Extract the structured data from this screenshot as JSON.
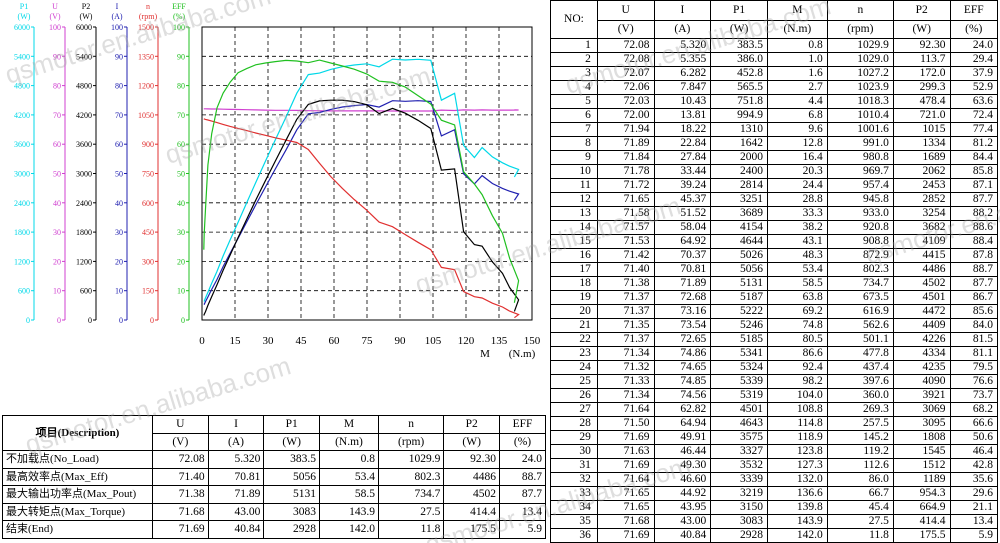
{
  "chart_data": {
    "type": "line",
    "xlabel": "M",
    "xunit": "(N.m)",
    "xlim": [
      0,
      150
    ],
    "xticks": [
      "0",
      "15",
      "30",
      "45",
      "60",
      "75",
      "90",
      "105",
      "120",
      "135",
      "150"
    ],
    "grid": true,
    "axes": [
      {
        "id": "p1",
        "name": "P1",
        "unit": "(W)",
        "color": "#00d8e8",
        "min": 0,
        "max": 6000,
        "ticks": [
          "0",
          "600",
          "1200",
          "1800",
          "2400",
          "3000",
          "3600",
          "4200",
          "4800",
          "5400",
          "6000"
        ]
      },
      {
        "id": "u",
        "name": "U",
        "unit": "(V)",
        "color": "#d040d0",
        "min": 0,
        "max": 100,
        "ticks": [
          "0",
          "10",
          "20",
          "30",
          "40",
          "50",
          "60",
          "70",
          "80",
          "90",
          "100"
        ]
      },
      {
        "id": "p2",
        "name": "P2",
        "unit": "(W)",
        "color": "#000000",
        "min": 0,
        "max": 6000,
        "ticks": [
          "0",
          "600",
          "1200",
          "1800",
          "2400",
          "3000",
          "3600",
          "4200",
          "4800",
          "5400",
          "6000"
        ]
      },
      {
        "id": "i",
        "name": "I",
        "unit": "(A)",
        "color": "#2020b0",
        "min": 0,
        "max": 100,
        "ticks": [
          "0",
          "10",
          "20",
          "30",
          "40",
          "50",
          "60",
          "70",
          "80",
          "90",
          "100"
        ]
      },
      {
        "id": "n",
        "name": "n",
        "unit": "(rpm)",
        "color": "#e03030",
        "min": 0,
        "max": 1500,
        "ticks": [
          "0",
          "150",
          "300",
          "450",
          "600",
          "750",
          "900",
          "1050",
          "1200",
          "1350",
          "1500"
        ]
      },
      {
        "id": "eff",
        "name": "EFF",
        "unit": "(%)",
        "color": "#20c020",
        "min": 0,
        "max": 100,
        "ticks": [
          "0",
          "10",
          "20",
          "30",
          "40",
          "50",
          "60",
          "70",
          "80",
          "90",
          "100"
        ]
      }
    ],
    "series": [
      {
        "axis": "u",
        "color": "#d040d0",
        "x": [
          0.8,
          1.0,
          1.6,
          2.7,
          4.4,
          6.8,
          9.6,
          12.8,
          16.4,
          20.3,
          24.4,
          28.8,
          33.3,
          38.2,
          43.1,
          48.3,
          53.4,
          58.5,
          63.8,
          69.2,
          74.8,
          80.5,
          86.6,
          92.4,
          98.2,
          104.0,
          108.8,
          114.8,
          118.9,
          123.8,
          127.3,
          132.0,
          136.6,
          139.8,
          143.9,
          142.0
        ],
        "values": [
          72.08,
          72.08,
          72.07,
          72.06,
          72.03,
          72.0,
          71.94,
          71.89,
          71.84,
          71.78,
          71.72,
          71.65,
          71.58,
          71.57,
          71.53,
          71.42,
          71.4,
          71.38,
          71.37,
          71.37,
          71.35,
          71.37,
          71.34,
          71.32,
          71.33,
          71.34,
          71.64,
          71.5,
          71.69,
          71.63,
          71.69,
          71.64,
          71.65,
          71.65,
          71.68,
          71.69
        ]
      },
      {
        "axis": "i",
        "color": "#2020b0",
        "x": [
          0.8,
          1.0,
          1.6,
          2.7,
          4.4,
          6.8,
          9.6,
          12.8,
          16.4,
          20.3,
          24.4,
          28.8,
          33.3,
          38.2,
          43.1,
          48.3,
          53.4,
          58.5,
          63.8,
          69.2,
          74.8,
          80.5,
          86.6,
          92.4,
          98.2,
          104.0,
          108.8,
          114.8,
          118.9,
          123.8,
          127.3,
          132.0,
          136.6,
          139.8,
          143.9,
          142.0
        ],
        "values": [
          5.32,
          5.355,
          6.282,
          7.847,
          10.43,
          13.81,
          18.22,
          22.84,
          27.84,
          33.44,
          39.24,
          45.37,
          51.52,
          58.04,
          64.92,
          70.37,
          70.81,
          71.89,
          72.68,
          73.16,
          73.54,
          72.65,
          74.86,
          74.65,
          74.85,
          74.56,
          62.82,
          64.94,
          49.91,
          46.44,
          49.3,
          46.6,
          44.92,
          43.95,
          43.0,
          40.84
        ]
      },
      {
        "axis": "p1",
        "color": "#00d8e8",
        "x": [
          0.8,
          1.0,
          1.6,
          2.7,
          4.4,
          6.8,
          9.6,
          12.8,
          16.4,
          20.3,
          24.4,
          28.8,
          33.3,
          38.2,
          43.1,
          48.3,
          53.4,
          58.5,
          63.8,
          69.2,
          74.8,
          80.5,
          86.6,
          92.4,
          98.2,
          104.0,
          108.8,
          114.8,
          118.9,
          123.8,
          127.3,
          132.0,
          136.6,
          139.8,
          143.9,
          142.0
        ],
        "values": [
          383.5,
          386.0,
          452.8,
          565.5,
          751.8,
          994.9,
          1310,
          1642,
          2000,
          2400,
          2814,
          3251,
          3689,
          4154,
          4644,
          5026,
          5056,
          5131,
          5187,
          5222,
          5246,
          5185,
          5341,
          5324,
          5339,
          5319,
          4501,
          4643,
          3575,
          3327,
          3532,
          3339,
          3219,
          3150,
          3083,
          2928
        ]
      },
      {
        "axis": "n",
        "color": "#e03030",
        "x": [
          0.8,
          1.0,
          1.6,
          2.7,
          4.4,
          6.8,
          9.6,
          12.8,
          16.4,
          20.3,
          24.4,
          28.8,
          33.3,
          38.2,
          43.1,
          48.3,
          53.4,
          58.5,
          63.8,
          69.2,
          74.8,
          80.5,
          86.6,
          92.4,
          98.2,
          104.0,
          108.8,
          114.8,
          118.9,
          123.8,
          127.3,
          132.0,
          136.6,
          139.8,
          143.9,
          142.0
        ],
        "values": [
          1029.9,
          1029.0,
          1027.2,
          1023.9,
          1018.3,
          1010.4,
          1001.6,
          991.0,
          980.8,
          969.7,
          957.4,
          945.8,
          933.0,
          920.8,
          908.8,
          872.9,
          802.3,
          734.7,
          673.5,
          616.9,
          562.6,
          501.1,
          477.8,
          437.4,
          397.6,
          360.0,
          269.3,
          257.5,
          145.2,
          119.2,
          112.6,
          86.0,
          66.7,
          45.4,
          27.5,
          11.8
        ]
      },
      {
        "axis": "p2",
        "color": "#000000",
        "x": [
          0.8,
          1.0,
          1.6,
          2.7,
          4.4,
          6.8,
          9.6,
          12.8,
          16.4,
          20.3,
          24.4,
          28.8,
          33.3,
          38.2,
          43.1,
          48.3,
          53.4,
          58.5,
          63.8,
          69.2,
          74.8,
          80.5,
          86.6,
          92.4,
          98.2,
          104.0,
          108.8,
          114.8,
          118.9,
          123.8,
          127.3,
          132.0,
          136.6,
          139.8,
          143.9,
          142.0
        ],
        "values": [
          92.3,
          113.7,
          172.0,
          299.3,
          478.4,
          721.0,
          1015,
          1334,
          1689,
          2062,
          2453,
          2852,
          3254,
          3682,
          4109,
          4415,
          4486,
          4502,
          4501,
          4472,
          4409,
          4226,
          4334,
          4235,
          4090,
          3921,
          3069,
          3095,
          1808,
          1545,
          1512,
          1189,
          954.3,
          664.9,
          414.4,
          175.5
        ]
      },
      {
        "axis": "eff",
        "color": "#20c020",
        "x": [
          0.8,
          1.0,
          1.6,
          2.7,
          4.4,
          6.8,
          9.6,
          12.8,
          16.4,
          20.3,
          24.4,
          28.8,
          33.3,
          38.2,
          43.1,
          48.3,
          53.4,
          58.5,
          63.8,
          69.2,
          74.8,
          80.5,
          86.6,
          92.4,
          98.2,
          104.0,
          108.8,
          114.8,
          118.9,
          123.8,
          127.3,
          132.0,
          136.6,
          139.8,
          143.9,
          142.0
        ],
        "values": [
          24.0,
          29.4,
          37.9,
          52.9,
          63.6,
          72.4,
          77.4,
          81.2,
          84.4,
          85.8,
          87.1,
          87.7,
          88.2,
          88.6,
          88.4,
          87.8,
          88.7,
          87.7,
          86.7,
          85.6,
          84.0,
          81.5,
          81.1,
          79.5,
          76.6,
          73.7,
          68.2,
          66.6,
          50.6,
          46.4,
          42.8,
          35.6,
          29.6,
          21.1,
          13.4,
          5.9
        ]
      }
    ]
  },
  "watermarks": [
    "qsmotor.en.alibaba.com",
    "qsmotor.en.alibaba.com",
    "qsmotor.en.alibaba.com",
    "qsmotor.en.alibaba.com",
    "qsmotor.en.alibaba.com",
    "qsmotor.en.alibaba.com",
    "qsmotor.en.alibaba.com"
  ],
  "data_table": {
    "headers": [
      "NO:",
      "U",
      "I",
      "P1",
      "M",
      "n",
      "P2",
      "EFF"
    ],
    "units": [
      "(V)",
      "(A)",
      "(W)",
      "(N.m)",
      "(rpm)",
      "(W)",
      "(%)"
    ],
    "rows": [
      [
        "1",
        "72.08",
        "5.320",
        "383.5",
        "0.8",
        "1029.9",
        "92.30",
        "24.0"
      ],
      [
        "2",
        "72.08",
        "5.355",
        "386.0",
        "1.0",
        "1029.0",
        "113.7",
        "29.4"
      ],
      [
        "3",
        "72.07",
        "6.282",
        "452.8",
        "1.6",
        "1027.2",
        "172.0",
        "37.9"
      ],
      [
        "4",
        "72.06",
        "7.847",
        "565.5",
        "2.7",
        "1023.9",
        "299.3",
        "52.9"
      ],
      [
        "5",
        "72.03",
        "10.43",
        "751.8",
        "4.4",
        "1018.3",
        "478.4",
        "63.6"
      ],
      [
        "6",
        "72.00",
        "13.81",
        "994.9",
        "6.8",
        "1010.4",
        "721.0",
        "72.4"
      ],
      [
        "7",
        "71.94",
        "18.22",
        "1310",
        "9.6",
        "1001.6",
        "1015",
        "77.4"
      ],
      [
        "8",
        "71.89",
        "22.84",
        "1642",
        "12.8",
        "991.0",
        "1334",
        "81.2"
      ],
      [
        "9",
        "71.84",
        "27.84",
        "2000",
        "16.4",
        "980.8",
        "1689",
        "84.4"
      ],
      [
        "10",
        "71.78",
        "33.44",
        "2400",
        "20.3",
        "969.7",
        "2062",
        "85.8"
      ],
      [
        "11",
        "71.72",
        "39.24",
        "2814",
        "24.4",
        "957.4",
        "2453",
        "87.1"
      ],
      [
        "12",
        "71.65",
        "45.37",
        "3251",
        "28.8",
        "945.8",
        "2852",
        "87.7"
      ],
      [
        "13",
        "71.58",
        "51.52",
        "3689",
        "33.3",
        "933.0",
        "3254",
        "88.2"
      ],
      [
        "14",
        "71.57",
        "58.04",
        "4154",
        "38.2",
        "920.8",
        "3682",
        "88.6"
      ],
      [
        "15",
        "71.53",
        "64.92",
        "4644",
        "43.1",
        "908.8",
        "4109",
        "88.4"
      ],
      [
        "16",
        "71.42",
        "70.37",
        "5026",
        "48.3",
        "872.9",
        "4415",
        "87.8"
      ],
      [
        "17",
        "71.40",
        "70.81",
        "5056",
        "53.4",
        "802.3",
        "4486",
        "88.7"
      ],
      [
        "18",
        "71.38",
        "71.89",
        "5131",
        "58.5",
        "734.7",
        "4502",
        "87.7"
      ],
      [
        "19",
        "71.37",
        "72.68",
        "5187",
        "63.8",
        "673.5",
        "4501",
        "86.7"
      ],
      [
        "20",
        "71.37",
        "73.16",
        "5222",
        "69.2",
        "616.9",
        "4472",
        "85.6"
      ],
      [
        "21",
        "71.35",
        "73.54",
        "5246",
        "74.8",
        "562.6",
        "4409",
        "84.0"
      ],
      [
        "22",
        "71.37",
        "72.65",
        "5185",
        "80.5",
        "501.1",
        "4226",
        "81.5"
      ],
      [
        "23",
        "71.34",
        "74.86",
        "5341",
        "86.6",
        "477.8",
        "4334",
        "81.1"
      ],
      [
        "24",
        "71.32",
        "74.65",
        "5324",
        "92.4",
        "437.4",
        "4235",
        "79.5"
      ],
      [
        "25",
        "71.33",
        "74.85",
        "5339",
        "98.2",
        "397.6",
        "4090",
        "76.6"
      ],
      [
        "26",
        "71.34",
        "74.56",
        "5319",
        "104.0",
        "360.0",
        "3921",
        "73.7"
      ],
      [
        "27",
        "71.64",
        "62.82",
        "4501",
        "108.8",
        "269.3",
        "3069",
        "68.2"
      ],
      [
        "28",
        "71.50",
        "64.94",
        "4643",
        "114.8",
        "257.5",
        "3095",
        "66.6"
      ],
      [
        "29",
        "71.69",
        "49.91",
        "3575",
        "118.9",
        "145.2",
        "1808",
        "50.6"
      ],
      [
        "30",
        "71.63",
        "46.44",
        "3327",
        "123.8",
        "119.2",
        "1545",
        "46.4"
      ],
      [
        "31",
        "71.69",
        "49.30",
        "3532",
        "127.3",
        "112.6",
        "1512",
        "42.8"
      ],
      [
        "32",
        "71.64",
        "46.60",
        "3339",
        "132.0",
        "86.0",
        "1189",
        "35.6"
      ],
      [
        "33",
        "71.65",
        "44.92",
        "3219",
        "136.6",
        "66.7",
        "954.3",
        "29.6"
      ],
      [
        "34",
        "71.65",
        "43.95",
        "3150",
        "139.8",
        "45.4",
        "664.9",
        "21.1"
      ],
      [
        "35",
        "71.68",
        "43.00",
        "3083",
        "143.9",
        "27.5",
        "414.4",
        "13.4"
      ],
      [
        "36",
        "71.69",
        "40.84",
        "2928",
        "142.0",
        "11.8",
        "175.5",
        "5.9"
      ]
    ]
  },
  "summary_table": {
    "header_desc": "项目(Description)",
    "headers": [
      "U",
      "I",
      "P1",
      "M",
      "n",
      "P2",
      "EFF"
    ],
    "units": [
      "(V)",
      "(A)",
      "(W)",
      "(N.m)",
      "(rpm)",
      "(W)",
      "(%)"
    ],
    "rows": [
      {
        "label": "不加载点(No_Load)",
        "values": [
          "72.08",
          "5.320",
          "383.5",
          "0.8",
          "1029.9",
          "92.30",
          "24.0"
        ]
      },
      {
        "label": "最高效率点(Max_Eff)",
        "values": [
          "71.40",
          "70.81",
          "5056",
          "53.4",
          "802.3",
          "4486",
          "88.7"
        ]
      },
      {
        "label": "最大输出功率点(Max_Pout)",
        "values": [
          "71.38",
          "71.89",
          "5131",
          "58.5",
          "734.7",
          "4502",
          "87.7"
        ]
      },
      {
        "label": "最大转矩点(Max_Torque)",
        "values": [
          "71.68",
          "43.00",
          "3083",
          "143.9",
          "27.5",
          "414.4",
          "13.4"
        ]
      },
      {
        "label": "结束(End)",
        "values": [
          "71.69",
          "40.84",
          "2928",
          "142.0",
          "11.8",
          "175.5",
          "5.9"
        ]
      }
    ]
  }
}
